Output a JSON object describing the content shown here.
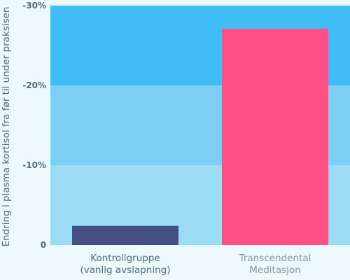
{
  "chart_data": {
    "type": "bar",
    "title": "",
    "xlabel": "",
    "ylabel": "Endring i plasma kortisol fra før til under praksisen",
    "categories": [
      [
        "Kontrollgruppe",
        "(vanlig avslapning)"
      ],
      [
        "Transcendental",
        "Meditasjon"
      ]
    ],
    "values": [
      -2.4,
      -27.1
    ],
    "ylim": [
      0,
      -30
    ],
    "yticks": [
      0,
      -10,
      -20,
      -30
    ],
    "ytick_labels": [
      "0",
      "-10%",
      "-20%",
      "-30%"
    ],
    "bar_colors": [
      "#454f86",
      "#ff4f85"
    ],
    "band_colors": [
      "#9cdcf4",
      "#7ccff3",
      "#40bdf4"
    ],
    "grid": false,
    "legend": "none"
  }
}
